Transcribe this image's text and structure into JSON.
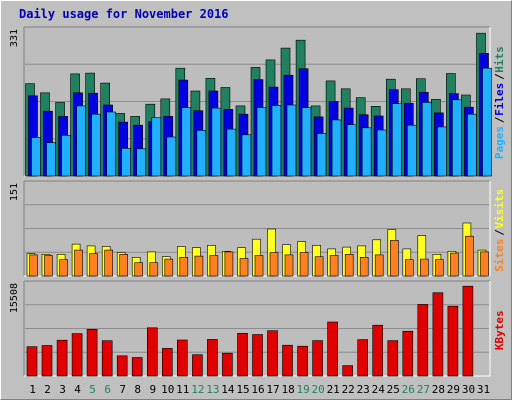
{
  "title": "Daily usage for November 2016",
  "colors": {
    "background": "#c0c0c0",
    "plot_bg": "#bdbdbd",
    "grid": "#8c8c8c",
    "hits": "#208060",
    "files": "#0000e0",
    "pages": "#20b0ff",
    "visits": "#ffff20",
    "sites": "#ff8020",
    "kbytes": "#e00000",
    "title": "#0000b4",
    "weekend_label": "#208060"
  },
  "chart_data": [
    {
      "type": "bar",
      "panel": "hits_files_pages",
      "ymax_label": "331",
      "ylim": [
        0,
        331
      ],
      "categories": [
        "1",
        "2",
        "3",
        "4",
        "5",
        "6",
        "7",
        "8",
        "9",
        "10",
        "11",
        "12",
        "13",
        "14",
        "15",
        "16",
        "17",
        "18",
        "19",
        "20",
        "21",
        "22",
        "23",
        "24",
        "25",
        "26",
        "27",
        "28",
        "29",
        "30",
        "31"
      ],
      "weekend_days": [
        "5",
        "6",
        "12",
        "13",
        "19",
        "20",
        "26",
        "27"
      ],
      "side_label": [
        "Pages",
        "/",
        "Files",
        "/",
        "Hits"
      ],
      "series": [
        {
          "name": "Hits",
          "values": [
            211,
            190,
            168,
            233,
            235,
            212,
            143,
            136,
            164,
            176,
            246,
            194,
            223,
            202,
            160,
            248,
            265,
            292,
            310,
            160,
            217,
            199,
            179,
            159,
            221,
            199,
            222,
            175,
            234,
            185,
            326
          ]
        },
        {
          "name": "Files",
          "values": [
            183,
            148,
            136,
            190,
            189,
            162,
            123,
            116,
            124,
            136,
            219,
            149,
            194,
            152,
            141,
            220,
            203,
            230,
            245,
            135,
            170,
            155,
            140,
            137,
            197,
            166,
            191,
            144,
            188,
            157,
            280
          ]
        },
        {
          "name": "Pages",
          "values": [
            88,
            76,
            93,
            160,
            141,
            146,
            63,
            62,
            133,
            89,
            156,
            104,
            155,
            107,
            94,
            156,
            161,
            162,
            156,
            97,
            128,
            117,
            110,
            105,
            165,
            116,
            168,
            112,
            174,
            141,
            246
          ]
        }
      ]
    },
    {
      "type": "bar",
      "panel": "visits_sites",
      "ymax_label": "151",
      "ylim": [
        0,
        151
      ],
      "side_label": [
        "Sites",
        "/",
        "Visits"
      ],
      "series": [
        {
          "name": "Visits",
          "values": [
            37,
            36,
            36,
            53,
            50,
            49,
            39,
            31,
            40,
            32,
            49,
            47,
            51,
            41,
            47,
            61,
            78,
            52,
            57,
            51,
            45,
            48,
            50,
            60,
            77,
            45,
            67,
            36,
            41,
            88,
            43
          ]
        },
        {
          "name": "Sites",
          "values": [
            35,
            34,
            27,
            43,
            37,
            43,
            36,
            22,
            22,
            28,
            31,
            33,
            34,
            40,
            29,
            34,
            39,
            35,
            39,
            32,
            34,
            36,
            31,
            35,
            59,
            27,
            28,
            27,
            38,
            66,
            40
          ]
        }
      ]
    },
    {
      "type": "bar",
      "panel": "kbytes",
      "ymax_label": "15508",
      "ylim": [
        0,
        15508
      ],
      "side_label": [
        "KBytes"
      ],
      "series": [
        {
          "name": "KBytes",
          "values": [
            5000,
            5190,
            6100,
            7220,
            7950,
            6010,
            3440,
            3160,
            8220,
            4710,
            6130,
            3630,
            6240,
            3880,
            7270,
            7070,
            7720,
            5250,
            5070,
            6040,
            9200,
            1770,
            6210,
            8660,
            6030,
            7640,
            12200,
            14200,
            11900,
            15300,
            0
          ]
        }
      ]
    }
  ]
}
